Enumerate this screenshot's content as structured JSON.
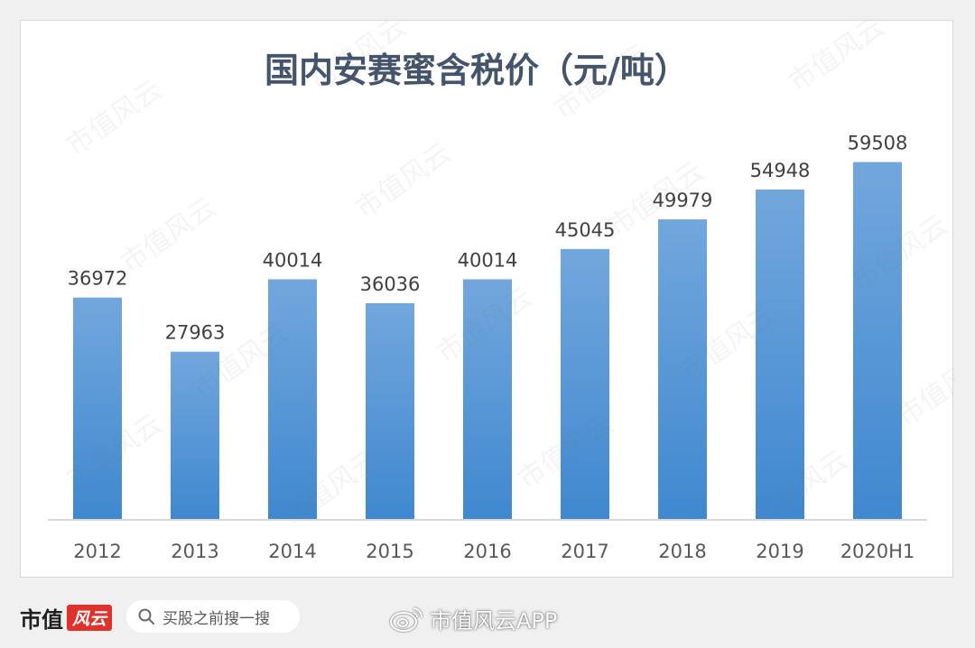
{
  "chart_data": {
    "type": "bar",
    "title": "国内安赛蜜含税价（元/吨）",
    "categories": [
      "2012",
      "2013",
      "2014",
      "2015",
      "2016",
      "2017",
      "2018",
      "2019",
      "2020H1"
    ],
    "series": [
      {
        "values": [
          36972,
          27963,
          40014,
          36036,
          40014,
          45045,
          49979,
          54948,
          59508
        ]
      }
    ],
    "data_labels": [
      "36972",
      "27963",
      "40014",
      "36036",
      "40014",
      "45045",
      "49979",
      "54948",
      "59508"
    ],
    "ylim": [
      0,
      65000
    ],
    "grid": false,
    "legend": "none",
    "bar_color_top": "#72a7dd",
    "bar_color_bottom": "#3f88cf",
    "axis_color": "#d9d9d9"
  },
  "watermark": {
    "text": "市值风云"
  },
  "footer": {
    "brand_name": "市值",
    "brand_tag": "风云",
    "search_placeholder": "买股之前搜一搜",
    "source": "市值风云APP",
    "brand_color": "#e0322b",
    "icons": [
      "search-icon",
      "weibo-icon"
    ]
  }
}
